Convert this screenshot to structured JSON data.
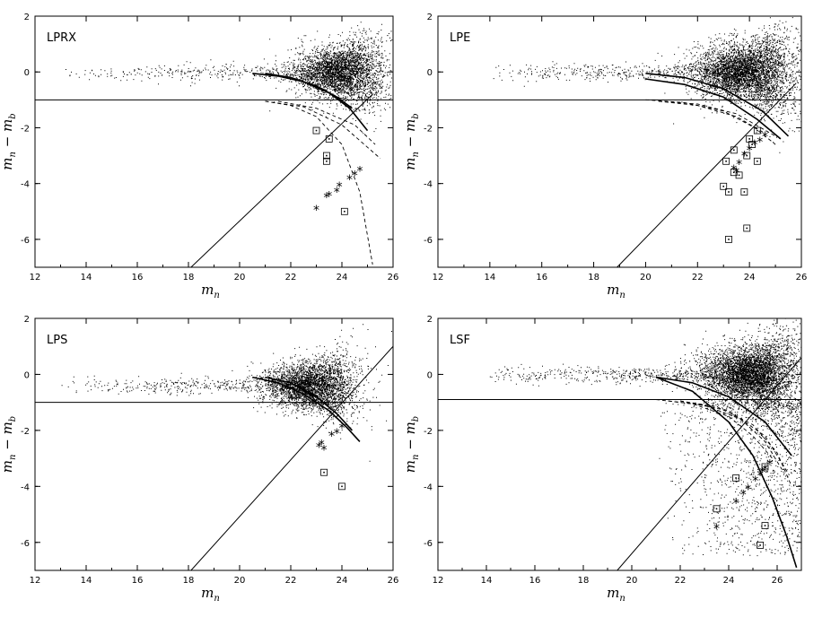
{
  "chart_data": [
    {
      "type": "scatter",
      "title": "LPRX",
      "xlabel": "m_n",
      "ylabel": "m_n − m_b",
      "xlim": [
        12,
        26
      ],
      "ylim": [
        -7,
        2
      ],
      "xticks": [
        "12",
        "14",
        "16",
        "18",
        "20",
        "22",
        "24",
        "26"
      ],
      "yticks": [
        "2",
        "0",
        "-2",
        "-4",
        "-6"
      ],
      "cloud": {
        "center": [
          24,
          0
        ],
        "spread": [
          0.9,
          0.45
        ],
        "tail_from": 13,
        "density": 3500
      },
      "horizontal_line_y": -1,
      "diagonal_line": {
        "x1": 18.1,
        "y1": -7,
        "x2": 25.2,
        "y2": -0.8
      },
      "solid_curves": [
        {
          "x": [
            20.5,
            21.5,
            22.5,
            23.5,
            24.3,
            25.0
          ],
          "y": [
            -0.05,
            -0.15,
            -0.35,
            -0.75,
            -1.3,
            -2.1
          ]
        },
        {
          "x": [
            21.0,
            22.0,
            23.0,
            23.8,
            24.4
          ],
          "y": [
            -0.05,
            -0.2,
            -0.5,
            -0.9,
            -1.3
          ]
        }
      ],
      "dashed_curves": [
        {
          "x": [
            21.0,
            22.0,
            23.0,
            24.0,
            24.7,
            25.2
          ],
          "y": [
            -1.05,
            -1.2,
            -1.6,
            -2.6,
            -4.3,
            -6.9
          ]
        },
        {
          "x": [
            21.0,
            22.5,
            24.0,
            25.5
          ],
          "y": [
            -1.05,
            -1.25,
            -1.9,
            -3.1
          ]
        },
        {
          "x": [
            21.5,
            23.0,
            24.5,
            25.3
          ],
          "y": [
            -1.05,
            -1.3,
            -1.9,
            -2.6
          ]
        }
      ],
      "asterisks": [
        [
          23.0,
          -4.95
        ],
        [
          23.4,
          -4.5
        ],
        [
          23.5,
          -4.45
        ],
        [
          23.8,
          -4.3
        ],
        [
          23.9,
          -4.1
        ],
        [
          24.3,
          -3.85
        ],
        [
          24.5,
          -3.7
        ],
        [
          24.7,
          -3.55
        ]
      ],
      "squares": [
        [
          23.0,
          -2.1
        ],
        [
          23.5,
          -2.4
        ],
        [
          23.4,
          -3.0
        ],
        [
          23.4,
          -3.2
        ],
        [
          24.1,
          -5.0
        ]
      ]
    },
    {
      "type": "scatter",
      "title": "LPE",
      "xlabel": "m_n",
      "ylabel": "m_n − m_b",
      "xlim": [
        12,
        26
      ],
      "ylim": [
        -7,
        2
      ],
      "xticks": [
        "12",
        "14",
        "16",
        "18",
        "20",
        "22",
        "24",
        "26"
      ],
      "yticks": [
        "2",
        "0",
        "-2",
        "-4",
        "-6"
      ],
      "cloud": {
        "center": [
          23.9,
          0
        ],
        "spread": [
          1.0,
          0.5
        ],
        "tail_from": 14,
        "density": 4500
      },
      "horizontal_line_y": -1,
      "diagonal_line": {
        "x1": 18.9,
        "y1": -7,
        "x2": 25.8,
        "y2": -0.4
      },
      "solid_curves": [
        {
          "x": [
            20.0,
            21.5,
            23.0,
            24.5,
            25.5
          ],
          "y": [
            -0.05,
            -0.2,
            -0.6,
            -1.4,
            -2.3
          ]
        },
        {
          "x": [
            20.0,
            21.5,
            23.0,
            24.3,
            25.2
          ],
          "y": [
            -0.25,
            -0.45,
            -0.9,
            -1.7,
            -2.4
          ]
        }
      ],
      "dashed_curves": [
        {
          "x": [
            20.0,
            21.5,
            23.0,
            24.2,
            25.0
          ],
          "y": [
            -1.0,
            -1.1,
            -1.4,
            -2.0,
            -2.6
          ]
        },
        {
          "x": [
            20.5,
            22.0,
            23.5,
            24.6
          ],
          "y": [
            -1.05,
            -1.2,
            -1.6,
            -2.2
          ]
        },
        {
          "x": [
            20.5,
            22.0,
            23.5,
            25.0
          ],
          "y": [
            -1.05,
            -1.15,
            -1.5,
            -2.3
          ]
        }
      ],
      "asterisks": [
        [
          23.4,
          -3.5
        ],
        [
          23.6,
          -3.3
        ],
        [
          23.8,
          -3.0
        ],
        [
          24.0,
          -2.8
        ],
        [
          24.2,
          -2.6
        ],
        [
          24.4,
          -2.5
        ],
        [
          24.6,
          -2.3
        ],
        [
          23.5,
          -3.6
        ]
      ],
      "squares": [
        [
          23.1,
          -3.2
        ],
        [
          23.4,
          -2.8
        ],
        [
          23.4,
          -3.6
        ],
        [
          23.6,
          -3.7
        ],
        [
          23.9,
          -3.0
        ],
        [
          24.0,
          -2.4
        ],
        [
          24.1,
          -2.6
        ],
        [
          24.3,
          -2.1
        ],
        [
          24.3,
          -3.2
        ],
        [
          23.0,
          -4.1
        ],
        [
          23.2,
          -4.3
        ],
        [
          23.8,
          -4.3
        ],
        [
          23.9,
          -5.6
        ],
        [
          23.2,
          -6.0
        ]
      ]
    },
    {
      "type": "scatter",
      "title": "LPS",
      "xlabel": "m_n",
      "ylabel": "m_n − m_b",
      "xlim": [
        12,
        26
      ],
      "ylim": [
        -7,
        2
      ],
      "xticks": [
        "12",
        "14",
        "16",
        "18",
        "20",
        "22",
        "24",
        "26"
      ],
      "yticks": [
        "2",
        "0",
        "-2",
        "-4",
        "-6"
      ],
      "cloud": {
        "center": [
          22.8,
          -0.4
        ],
        "spread": [
          0.9,
          0.4
        ],
        "tail_from": 13,
        "density": 3500
      },
      "horizontal_line_y": -1,
      "diagonal_line": {
        "x1": 18.1,
        "y1": -7,
        "x2": 26.0,
        "y2": 1.0
      },
      "solid_curves": [
        {
          "x": [
            20.5,
            21.5,
            22.5,
            23.5,
            24.2,
            24.7
          ],
          "y": [
            -0.1,
            -0.3,
            -0.7,
            -1.3,
            -1.9,
            -2.4
          ]
        },
        {
          "x": [
            21.0,
            22.0,
            23.0,
            23.8,
            24.4
          ],
          "y": [
            -0.1,
            -0.3,
            -0.8,
            -1.4,
            -2.0
          ]
        }
      ],
      "dashed_curves": [],
      "asterisks": [
        [
          23.1,
          -2.6
        ],
        [
          23.2,
          -2.5
        ],
        [
          23.6,
          -2.2
        ],
        [
          23.8,
          -2.1
        ],
        [
          24.0,
          -1.9
        ],
        [
          23.3,
          -2.7
        ]
      ],
      "squares": [
        [
          23.3,
          -3.5
        ],
        [
          24.0,
          -4.0
        ]
      ]
    },
    {
      "type": "scatter",
      "title": "LSF",
      "xlabel": "m_n",
      "ylabel": "m_n − m_b",
      "xlim": [
        12,
        27
      ],
      "ylim": [
        -7,
        2
      ],
      "xticks": [
        "12",
        "14",
        "16",
        "18",
        "20",
        "22",
        "24",
        "26"
      ],
      "yticks": [
        "2",
        "0",
        "-2",
        "-4",
        "-6"
      ],
      "cloud": {
        "center": [
          25.0,
          0
        ],
        "spread": [
          1.0,
          0.5
        ],
        "tail_from": 14,
        "density": 5000
      },
      "extra_scatter": {
        "x_range": [
          21,
          27
        ],
        "y_range": [
          -6.5,
          -1
        ],
        "count": 1300
      },
      "horizontal_line_y": -0.9,
      "diagonal_line": {
        "x1": 19.4,
        "y1": -7,
        "x2": 27.0,
        "y2": 0.6
      },
      "solid_curves": [
        {
          "x": [
            21.0,
            22.5,
            24.0,
            25.5,
            26.6
          ],
          "y": [
            -0.1,
            -0.3,
            -0.8,
            -1.7,
            -2.9
          ]
        },
        {
          "x": [
            21.0,
            22.5,
            24.0,
            25.0,
            25.8,
            26.4,
            26.8
          ],
          "y": [
            -0.1,
            -0.6,
            -1.7,
            -2.9,
            -4.4,
            -5.8,
            -6.9
          ]
        }
      ],
      "dashed_curves": [
        {
          "x": [
            21.0,
            22.5,
            24.0,
            25.0,
            25.8
          ],
          "y": [
            -0.9,
            -1.05,
            -1.5,
            -2.2,
            -3.0
          ]
        },
        {
          "x": [
            21.5,
            23.0,
            24.5,
            25.5,
            26.2
          ],
          "y": [
            -0.95,
            -1.1,
            -1.6,
            -2.4,
            -3.4
          ]
        },
        {
          "x": [
            22.0,
            23.5,
            25.0,
            26.0,
            26.6
          ],
          "y": [
            -0.95,
            -1.15,
            -1.8,
            -2.8,
            -4.0
          ]
        },
        {
          "x": [
            22.0,
            24.0,
            25.5,
            26.5
          ],
          "y": [
            -0.95,
            -1.3,
            -2.2,
            -3.6
          ]
        }
      ],
      "asterisks": [
        [
          23.5,
          -5.5
        ],
        [
          24.3,
          -4.6
        ],
        [
          24.6,
          -4.3
        ],
        [
          24.8,
          -4.1
        ],
        [
          25.1,
          -3.8
        ],
        [
          25.3,
          -3.6
        ],
        [
          25.5,
          -3.4
        ],
        [
          25.7,
          -3.2
        ],
        [
          25.4,
          -3.5
        ]
      ],
      "squares": [
        [
          23.5,
          -4.8
        ],
        [
          24.3,
          -3.7
        ],
        [
          25.5,
          -3.3
        ],
        [
          25.5,
          -5.4
        ],
        [
          25.3,
          -6.1
        ]
      ]
    }
  ]
}
